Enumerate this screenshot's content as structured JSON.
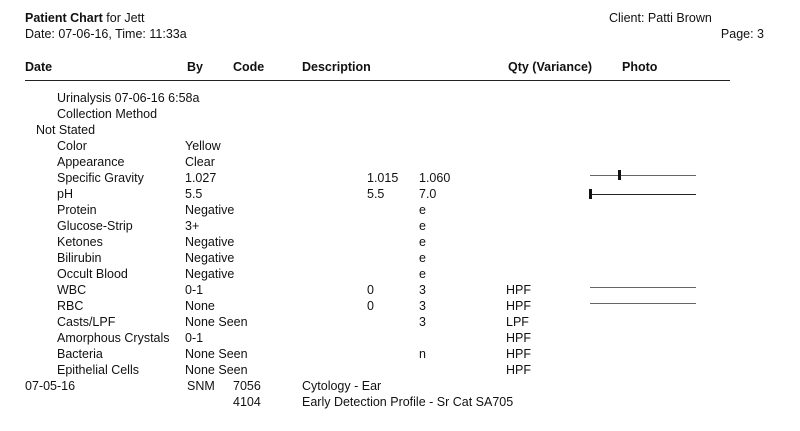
{
  "header": {
    "title_bold": "Patient Chart",
    "title_rest": " for Jett",
    "date_line": "Date: 07-06-16, Time: 11:33a",
    "client": "Client: Patti Brown",
    "page": "Page: 3"
  },
  "columns": {
    "date": "Date",
    "by": "By",
    "code": "Code",
    "description": "Description",
    "qty": "Qty (Variance)",
    "photo": "Photo"
  },
  "lab": {
    "title": "Urinalysis 07-06-16 6:58a",
    "collection_label": "Collection Method",
    "collection_value": "Not Stated",
    "results": [
      {
        "name": "Color",
        "value": "Yellow",
        "low": "",
        "high": "",
        "unit": ""
      },
      {
        "name": "Appearance",
        "value": "Clear",
        "low": "",
        "high": "",
        "unit": ""
      },
      {
        "name": "Specific Gravity",
        "value": "1.027",
        "low": "1.015",
        "high": "1.060",
        "unit": "",
        "range_position": 0.27
      },
      {
        "name": "pH",
        "value": "5.5",
        "low": "5.5",
        "high": "7.0",
        "unit": "",
        "range_position": 0.0
      },
      {
        "name": "Protein",
        "value": "Negative",
        "low": "",
        "high": "e",
        "unit": ""
      },
      {
        "name": "Glucose-Strip",
        "value": "3+",
        "low": "",
        "high": "e",
        "unit": ""
      },
      {
        "name": "Ketones",
        "value": "Negative",
        "low": "",
        "high": "e",
        "unit": ""
      },
      {
        "name": "Bilirubin",
        "value": "Negative",
        "low": "",
        "high": "e",
        "unit": ""
      },
      {
        "name": "Occult Blood",
        "value": "Negative",
        "low": "",
        "high": "e",
        "unit": ""
      },
      {
        "name": "WBC",
        "value": "0-1",
        "low": "0",
        "high": "3",
        "unit": "HPF",
        "range_bar": true
      },
      {
        "name": "RBC",
        "value": "None",
        "low": "0",
        "high": "3",
        "unit": "HPF",
        "range_bar": true
      },
      {
        "name": "Casts/LPF",
        "value": "None Seen",
        "low": "",
        "high": "3",
        "unit": "LPF"
      },
      {
        "name": "Amorphous Crystals",
        "value": "0-1",
        "low": "",
        "high": "",
        "unit": "HPF"
      },
      {
        "name": "Bacteria",
        "value": "None Seen",
        "low": "",
        "high": "n",
        "unit": "HPF"
      },
      {
        "name": "Epithelial Cells",
        "value": "None Seen",
        "low": "",
        "high": "",
        "unit": "HPF"
      }
    ]
  },
  "entries": [
    {
      "date": "07-05-16",
      "by": "SNM",
      "code": "7056",
      "description": "Cytology - Ear"
    },
    {
      "date": "",
      "by": "",
      "code": "4104",
      "description": "Early Detection Profile - Sr Cat SA705"
    }
  ]
}
